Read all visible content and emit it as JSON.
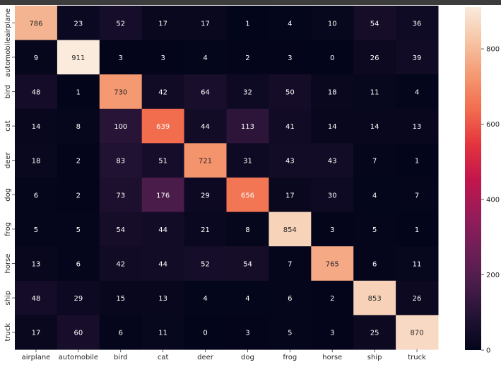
{
  "chart_data": {
    "type": "heatmap",
    "title": "",
    "xlabel": "",
    "ylabel": "",
    "colormap": "rocket",
    "x_categories": [
      "airplane",
      "automobile",
      "bird",
      "cat",
      "deer",
      "dog",
      "frog",
      "horse",
      "ship",
      "truck"
    ],
    "y_categories": [
      "airplane",
      "automobile",
      "bird",
      "cat",
      "deer",
      "dog",
      "frog",
      "horse",
      "ship",
      "truck"
    ],
    "values": [
      [
        786,
        23,
        52,
        17,
        17,
        1,
        4,
        10,
        54,
        36
      ],
      [
        9,
        911,
        3,
        3,
        4,
        2,
        3,
        0,
        26,
        39
      ],
      [
        48,
        1,
        730,
        42,
        64,
        32,
        50,
        18,
        11,
        4
      ],
      [
        14,
        8,
        100,
        639,
        44,
        113,
        41,
        14,
        14,
        13
      ],
      [
        18,
        2,
        83,
        51,
        721,
        31,
        43,
        43,
        7,
        1
      ],
      [
        6,
        2,
        73,
        176,
        29,
        656,
        17,
        30,
        4,
        7
      ],
      [
        5,
        5,
        54,
        44,
        21,
        8,
        854,
        3,
        5,
        1
      ],
      [
        13,
        6,
        42,
        44,
        52,
        54,
        7,
        765,
        6,
        11
      ],
      [
        48,
        29,
        15,
        13,
        4,
        4,
        6,
        2,
        853,
        26
      ],
      [
        17,
        60,
        6,
        11,
        0,
        3,
        5,
        3,
        25,
        870
      ]
    ],
    "colorbar": {
      "range": [
        0,
        911
      ],
      "ticks": [
        0,
        200,
        400,
        600,
        800
      ],
      "tick_labels": [
        "0",
        "200",
        "400",
        "600",
        "800"
      ]
    }
  }
}
